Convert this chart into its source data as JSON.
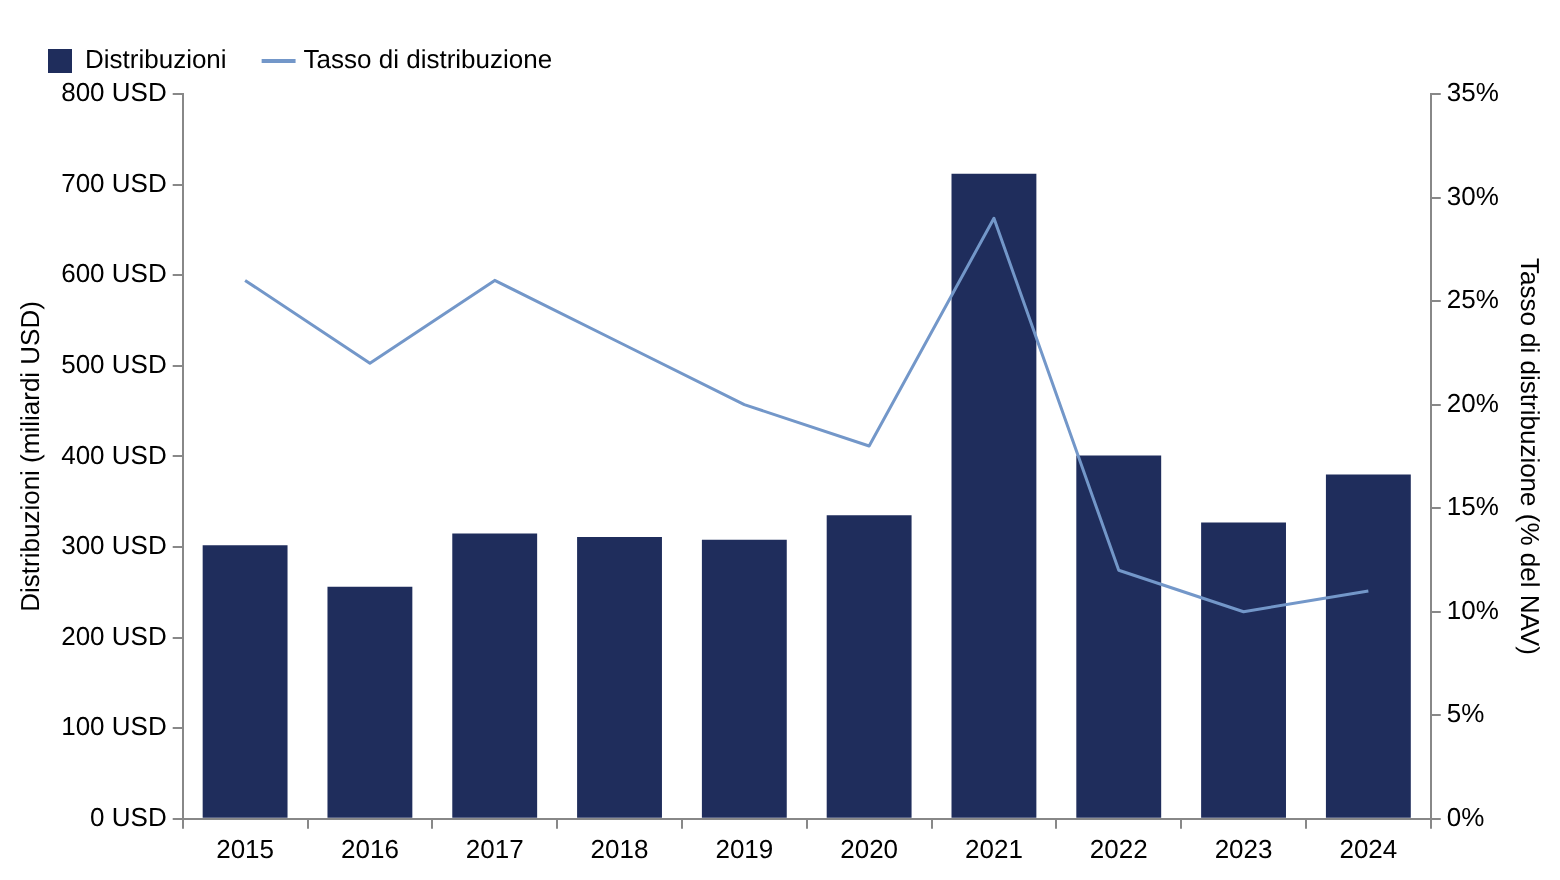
{
  "chart_data": {
    "type": "bar",
    "categories": [
      "2015",
      "2016",
      "2017",
      "2018",
      "2019",
      "2020",
      "2021",
      "2022",
      "2023",
      "2024"
    ],
    "series": [
      {
        "name": "Distribuzioni",
        "color": "#1f2d5c",
        "values": [
          302,
          256,
          315,
          311,
          308,
          335,
          712,
          401,
          327,
          380
        ]
      },
      {
        "name": "Tasso di distribuzione",
        "type": "line",
        "axis": "y2",
        "color": "#7397c9",
        "values": [
          26,
          22,
          26,
          23,
          20,
          18,
          29,
          12,
          10,
          11
        ]
      }
    ],
    "ylabel": "Distribuzioni (miliardi USD)",
    "y2label": "Tasso di distribuzione (% del NAV)",
    "ylim": [
      0,
      800
    ],
    "yticks": [
      {
        "value": 0,
        "label": "0 USD"
      },
      {
        "value": 100,
        "label": "100 USD"
      },
      {
        "value": 200,
        "label": "200 USD"
      },
      {
        "value": 300,
        "label": "300 USD"
      },
      {
        "value": 400,
        "label": "400 USD"
      },
      {
        "value": 500,
        "label": "500 USD"
      },
      {
        "value": 600,
        "label": "600 USD"
      },
      {
        "value": 700,
        "label": "700 USD"
      },
      {
        "value": 800,
        "label": "800 USD"
      }
    ],
    "y2lim": [
      0,
      35
    ],
    "y2ticks": [
      {
        "value": 0,
        "label": "0%"
      },
      {
        "value": 5,
        "label": "5%"
      },
      {
        "value": 10,
        "label": "10%"
      },
      {
        "value": 15,
        "label": "15%"
      },
      {
        "value": 20,
        "label": "20%"
      },
      {
        "value": 25,
        "label": "25%"
      },
      {
        "value": 30,
        "label": "30%"
      },
      {
        "value": 35,
        "label": "35%"
      }
    ],
    "grid": false,
    "legend": "top left",
    "marker": "none"
  }
}
